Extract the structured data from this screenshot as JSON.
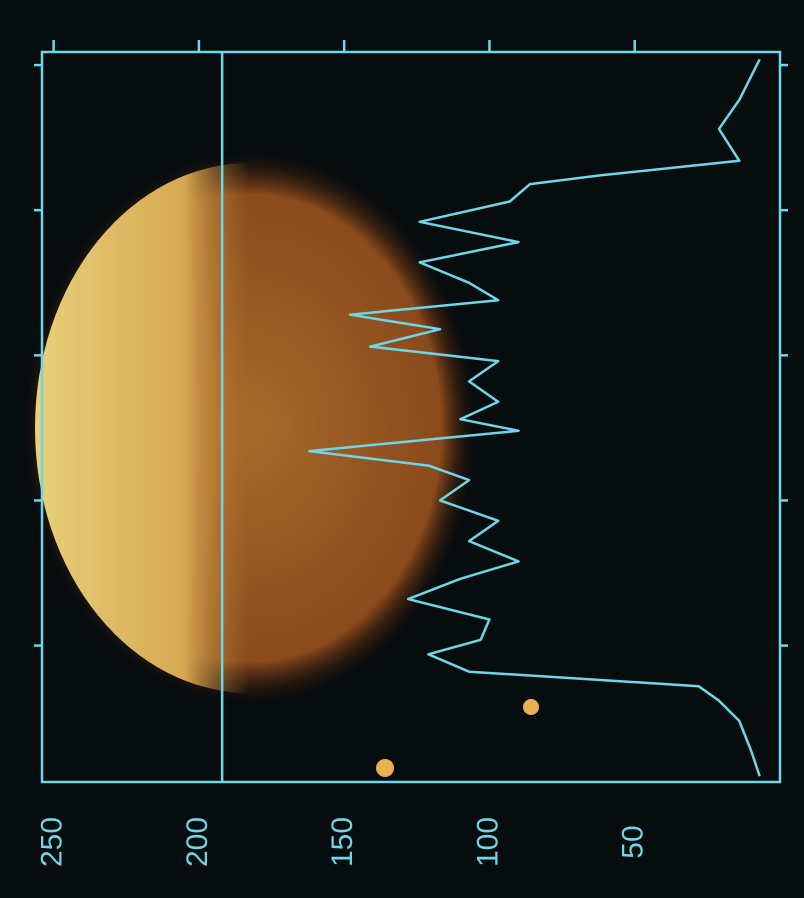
{
  "chart_data": {
    "type": "line",
    "x": [
      -2,
      12,
      22,
      33,
      38,
      41,
      47,
      54,
      61,
      68,
      75,
      81,
      86,
      91,
      97,
      102,
      109,
      116,
      122,
      126,
      133,
      138,
      143,
      150,
      157,
      164,
      171,
      177,
      184,
      191,
      198,
      203,
      209,
      214,
      219,
      226,
      236,
      245
    ],
    "series": [
      {
        "color": "#6fd6e6",
        "values": [
          7,
          14,
          21,
          14,
          62,
          86,
          93,
          124,
          90,
          124,
          107,
          97,
          148,
          117,
          141,
          97,
          107,
          97,
          110,
          90,
          162,
          121,
          107,
          117,
          97,
          107,
          90,
          110,
          128,
          100,
          103,
          121,
          107,
          28,
          21,
          14,
          10,
          7
        ]
      }
    ],
    "ylim": [
      0,
      254
    ],
    "yticks": [
      50,
      100,
      150,
      200,
      250
    ],
    "xlim": [
      -4.5,
      247
    ],
    "xticks": [
      0,
      50,
      100,
      150,
      200
    ],
    "reference_line": 192
  }
}
